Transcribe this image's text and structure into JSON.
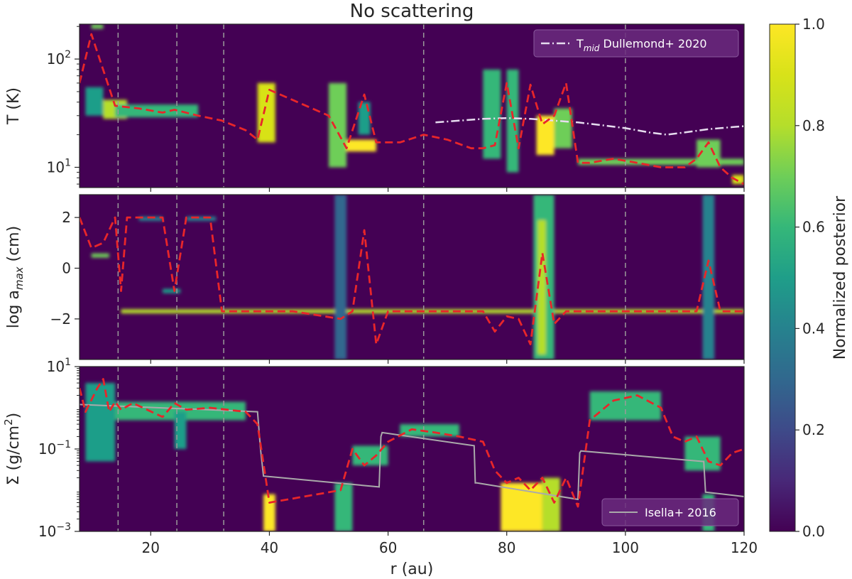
{
  "chart_data": {
    "type": "heatmap",
    "title": "No scattering",
    "xlabel": "r (au)",
    "xlim": [
      8,
      120
    ],
    "xticks": [
      20,
      40,
      60,
      80,
      100,
      120
    ],
    "xtick_labels": [
      "20",
      "40",
      "60",
      "80",
      "100",
      "120"
    ],
    "gap_lines_r": [
      14.5,
      24.4,
      32.3,
      66.0,
      100.0
    ],
    "colors": {
      "background": "#440154",
      "bestfit": "#e8262a",
      "gap_lines": "#9a9a9a",
      "tmid_line": "#e6dcef",
      "isella_line": "#aaaaaa"
    },
    "colorbar": {
      "label": "Normalized posterior",
      "range": [
        0.0,
        1.0
      ],
      "ticks": [
        "0.0",
        "0.2",
        "0.4",
        "0.6",
        "0.8",
        "1.0"
      ]
    },
    "panels": [
      {
        "name": "temperature",
        "ylabel_parts": [
          "T (K)"
        ],
        "yscale": "log",
        "ylim": [
          6.5,
          210
        ],
        "yticks": [
          {
            "value": 100,
            "base": "10",
            "exp": "2"
          },
          {
            "value": 10,
            "base": "10",
            "exp": "1"
          }
        ],
        "bestfit_x": [
          8,
          10,
          14,
          18,
          22,
          24,
          28,
          32,
          36,
          38,
          40,
          50,
          53,
          56,
          58,
          62,
          66,
          70,
          74,
          76,
          78,
          80,
          82,
          84,
          86,
          88,
          90,
          92,
          94,
          98,
          102,
          106,
          110,
          112,
          114,
          116,
          118,
          120
        ],
        "bestfit_y": [
          60,
          170,
          37,
          35,
          32,
          34,
          30,
          27,
          22,
          18,
          52,
          30,
          15,
          47,
          17,
          17,
          20,
          18,
          15,
          15,
          16,
          60,
          15,
          58,
          25,
          30,
          60,
          11,
          11,
          12,
          11,
          10,
          10,
          12,
          17,
          10,
          8,
          7
        ],
        "reference": {
          "label_main": "T",
          "label_sub": "mid",
          "label_rest": " Dullemond+ 2020",
          "x": [
            68,
            72,
            76,
            80,
            84,
            88,
            92,
            96,
            100,
            104,
            107,
            110,
            114,
            118,
            120
          ],
          "y": [
            26,
            27,
            28,
            28.5,
            28,
            27,
            26,
            24.5,
            23,
            21,
            20,
            21,
            22.5,
            23.5,
            24
          ]
        },
        "blobs": [
          {
            "r0": 9,
            "r1": 12,
            "lo": 30,
            "hi": 55,
            "v": 0.5
          },
          {
            "r0": 10,
            "r1": 12,
            "lo": 190,
            "hi": 210,
            "v": 0.7
          },
          {
            "r0": 12,
            "r1": 16,
            "lo": 28,
            "hi": 42,
            "v": 0.75
          },
          {
            "r0": 14,
            "r1": 28,
            "lo": 29,
            "hi": 38,
            "v": 0.6
          },
          {
            "r0": 38,
            "r1": 41,
            "lo": 17,
            "hi": 60,
            "v": 0.9
          },
          {
            "r0": 50,
            "r1": 53,
            "lo": 10,
            "hi": 60,
            "v": 0.65
          },
          {
            "r0": 53,
            "r1": 58,
            "lo": 14,
            "hi": 18,
            "v": 0.95
          },
          {
            "r0": 55,
            "r1": 57,
            "lo": 20,
            "hi": 40,
            "v": 0.5
          },
          {
            "r0": 76,
            "r1": 79,
            "lo": 12,
            "hi": 80,
            "v": 0.55
          },
          {
            "r0": 80,
            "r1": 82,
            "lo": 9,
            "hi": 80,
            "v": 0.6
          },
          {
            "r0": 85,
            "r1": 88,
            "lo": 13,
            "hi": 30,
            "v": 1.0
          },
          {
            "r0": 88,
            "r1": 91,
            "lo": 15,
            "hi": 35,
            "v": 0.7
          },
          {
            "r0": 92,
            "r1": 120,
            "lo": 10.5,
            "hi": 12,
            "v": 0.65
          },
          {
            "r0": 112,
            "r1": 116,
            "lo": 10,
            "hi": 18,
            "v": 0.7
          },
          {
            "r0": 118,
            "r1": 120,
            "lo": 7,
            "hi": 8.5,
            "v": 0.9
          }
        ]
      },
      {
        "name": "amax",
        "ylabel_parts": [
          "log a",
          "max",
          " (cm)"
        ],
        "yscale": "linear",
        "ylim": [
          -3.6,
          2.9
        ],
        "yticks": [
          {
            "value": 2,
            "label": "2"
          },
          {
            "value": 0,
            "label": "0"
          },
          {
            "value": -2,
            "label": "−2"
          }
        ],
        "bestfit_x": [
          8,
          10,
          12,
          14,
          15,
          16,
          18,
          22,
          24,
          26,
          30,
          32,
          36,
          40,
          44,
          52,
          54,
          56,
          58,
          60,
          64,
          68,
          72,
          76,
          78,
          80,
          82,
          84,
          86,
          88,
          90,
          94,
          98,
          102,
          106,
          110,
          112,
          114,
          116,
          120
        ],
        "bestfit_y": [
          2.0,
          0.8,
          1.0,
          2.0,
          -0.9,
          2.0,
          2.0,
          2.0,
          -0.9,
          2.0,
          2.0,
          -1.7,
          -1.7,
          -1.7,
          -1.7,
          -2.0,
          -1.7,
          1.5,
          -3.0,
          -1.7,
          -1.7,
          -1.7,
          -1.7,
          -1.7,
          -2.5,
          -1.9,
          -2.0,
          -3.0,
          0.6,
          -2.2,
          -1.7,
          -1.7,
          -1.7,
          -1.7,
          -1.7,
          -1.7,
          -1.7,
          0.3,
          -1.7,
          -1.7
        ]
      },
      {
        "name": "sigma",
        "ylabel_parts": [
          "Σ (g/cm",
          "2",
          ")"
        ],
        "yscale": "log",
        "ylim": [
          0.001,
          10
        ],
        "yticks": [
          {
            "value": 10,
            "base": "10",
            "exp": "1"
          },
          {
            "value": 0.1,
            "base": "10",
            "exp": "−1"
          },
          {
            "value": 0.001,
            "base": "10",
            "exp": "−3"
          }
        ],
        "bestfit_x": [
          8,
          9,
          11,
          12,
          13,
          14,
          15,
          17,
          22,
          24,
          26,
          30,
          36,
          38,
          40,
          52,
          54,
          56,
          58,
          60,
          64,
          68,
          72,
          76,
          78,
          80,
          82,
          84,
          86,
          88,
          90,
          92,
          94,
          98,
          102,
          106,
          108,
          110,
          112,
          114,
          116,
          118,
          120
        ],
        "bestfit_y": [
          3,
          0.8,
          3,
          5,
          0.8,
          1.4,
          0.9,
          1.3,
          0.6,
          1.3,
          0.9,
          1.0,
          0.8,
          0.4,
          0.005,
          0.01,
          0.1,
          0.04,
          0.07,
          0.15,
          0.3,
          0.25,
          0.2,
          0.15,
          0.03,
          0.015,
          0.02,
          0.01,
          0.02,
          0.005,
          0.02,
          0.004,
          0.5,
          1.5,
          2.0,
          1.0,
          0.2,
          0.15,
          0.2,
          0.05,
          0.04,
          0.08,
          0.1
        ],
        "reference": {
          "label": "Isella+ 2016",
          "x": [
            8,
            38,
            38.5,
            39,
            58.5,
            58.8,
            59,
            74.5,
            74.7,
            75,
            92,
            92.3,
            92.5,
            113,
            113.2,
            113.5,
            120
          ],
          "y": [
            1.2,
            0.8,
            0.1,
            0.022,
            0.012,
            0.2,
            0.25,
            0.12,
            0.015,
            0.015,
            0.006,
            0.08,
            0.09,
            0.05,
            0.05,
            0.009,
            0.007
          ]
        },
        "blobs": [
          {
            "r0": 9,
            "r1": 14,
            "lo": 0.05,
            "hi": 4,
            "v": 0.45
          },
          {
            "r0": 14,
            "r1": 36,
            "lo": 0.5,
            "hi": 1.4,
            "v": 0.6
          },
          {
            "r0": 24,
            "r1": 26,
            "lo": 0.1,
            "hi": 0.8,
            "v": 0.5
          },
          {
            "r0": 39,
            "r1": 41,
            "lo": 0.001,
            "hi": 0.008,
            "v": 0.95
          },
          {
            "r0": 51,
            "r1": 54,
            "lo": 0.001,
            "hi": 0.015,
            "v": 0.6
          },
          {
            "r0": 54,
            "r1": 60,
            "lo": 0.04,
            "hi": 0.12,
            "v": 0.6
          },
          {
            "r0": 62,
            "r1": 72,
            "lo": 0.2,
            "hi": 0.4,
            "v": 0.55
          },
          {
            "r0": 79,
            "r1": 86,
            "lo": 0.001,
            "hi": 0.015,
            "v": 1.0
          },
          {
            "r0": 86,
            "r1": 89,
            "lo": 0.001,
            "hi": 0.02,
            "v": 0.75
          },
          {
            "r0": 94,
            "r1": 106,
            "lo": 0.5,
            "hi": 2.5,
            "v": 0.6
          },
          {
            "r0": 110,
            "r1": 116,
            "lo": 0.03,
            "hi": 0.2,
            "v": 0.6
          },
          {
            "r0": 113,
            "r1": 115,
            "lo": 0.001,
            "hi": 0.008,
            "v": 0.6
          }
        ]
      }
    ]
  }
}
